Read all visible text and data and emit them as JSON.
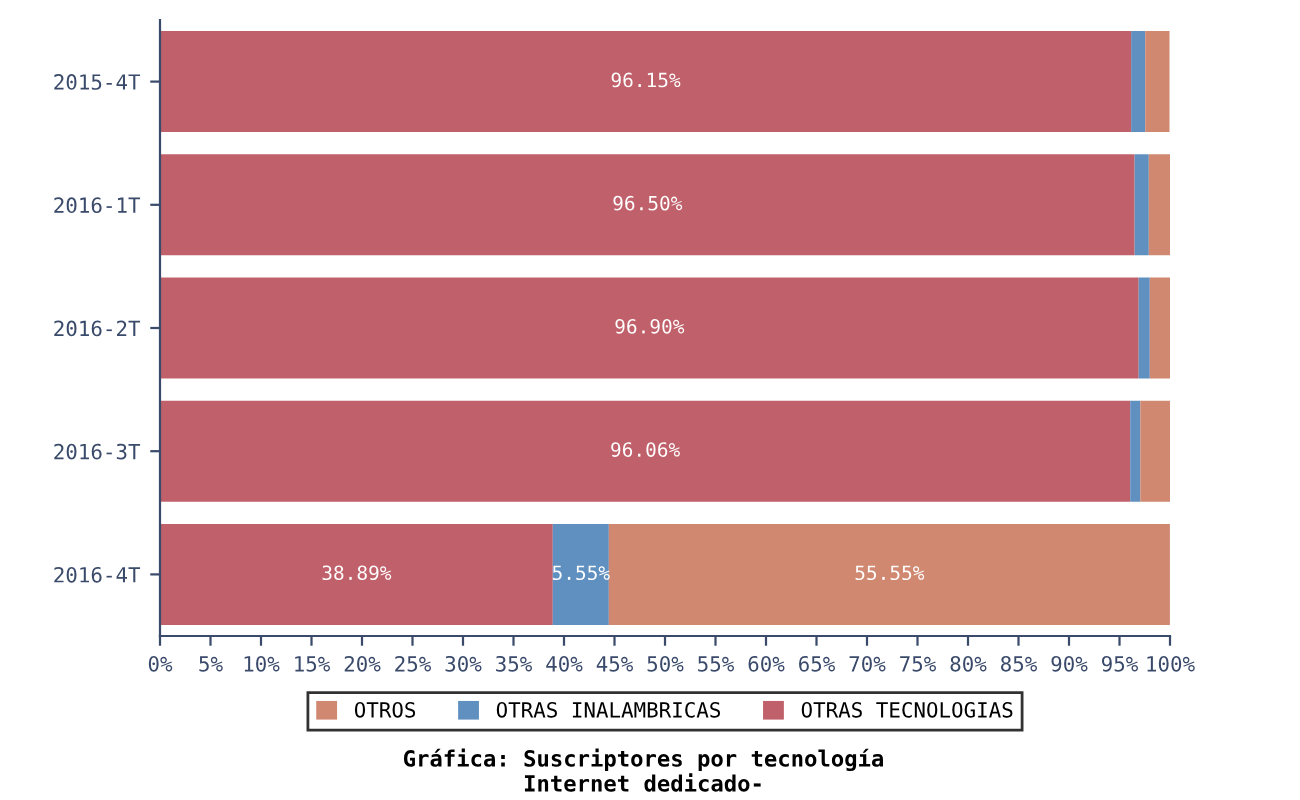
{
  "chart_data": {
    "type": "bar",
    "orientation": "horizontal",
    "stacked": true,
    "title": "Gráfica: Suscriptores por tecnología\nInternet dedicado-",
    "categories": [
      "2015-4T",
      "2016-1T",
      "2016-2T",
      "2016-3T",
      "2016-4T"
    ],
    "series": [
      {
        "name": "OTRAS TECNOLOGIAS",
        "color": "#c0606a",
        "values": [
          96.15,
          96.5,
          96.9,
          96.06,
          38.89
        ],
        "value_labels": [
          "96.15%",
          "96.50%",
          "96.90%",
          "96.06%",
          "38.89%"
        ]
      },
      {
        "name": "OTRAS INALAMBRICAS",
        "color": "#6090c0",
        "values": [
          1.4,
          1.4,
          1.1,
          1.0,
          5.55
        ],
        "value_labels": [
          null,
          null,
          null,
          null,
          "5.55%"
        ]
      },
      {
        "name": "OTROS",
        "color": "#d08870",
        "values": [
          2.4,
          2.1,
          2.0,
          3.0,
          55.55
        ],
        "value_labels": [
          null,
          null,
          null,
          null,
          "55.55%"
        ]
      }
    ],
    "xlim": [
      0,
      100
    ],
    "xticks": [
      {
        "value": 0,
        "label": "0%"
      },
      {
        "value": 5,
        "label": "5%"
      },
      {
        "value": 10,
        "label": "10%"
      },
      {
        "value": 15,
        "label": "15%"
      },
      {
        "value": 20,
        "label": "20%"
      },
      {
        "value": 25,
        "label": "25%"
      },
      {
        "value": 30,
        "label": "30%"
      },
      {
        "value": 35,
        "label": "35%"
      },
      {
        "value": 40,
        "label": "40%"
      },
      {
        "value": 45,
        "label": "45%"
      },
      {
        "value": 50,
        "label": "50%"
      },
      {
        "value": 55,
        "label": "55%"
      },
      {
        "value": 60,
        "label": "60%"
      },
      {
        "value": 65,
        "label": "65%"
      },
      {
        "value": 70,
        "label": "70%"
      },
      {
        "value": 75,
        "label": "75%"
      },
      {
        "value": 80,
        "label": "80%"
      },
      {
        "value": 85,
        "label": "85%"
      },
      {
        "value": 90,
        "label": "90%"
      },
      {
        "value": 95,
        "label": "95%"
      },
      {
        "value": 100,
        "label": "100%"
      }
    ],
    "legend": "bottom"
  }
}
